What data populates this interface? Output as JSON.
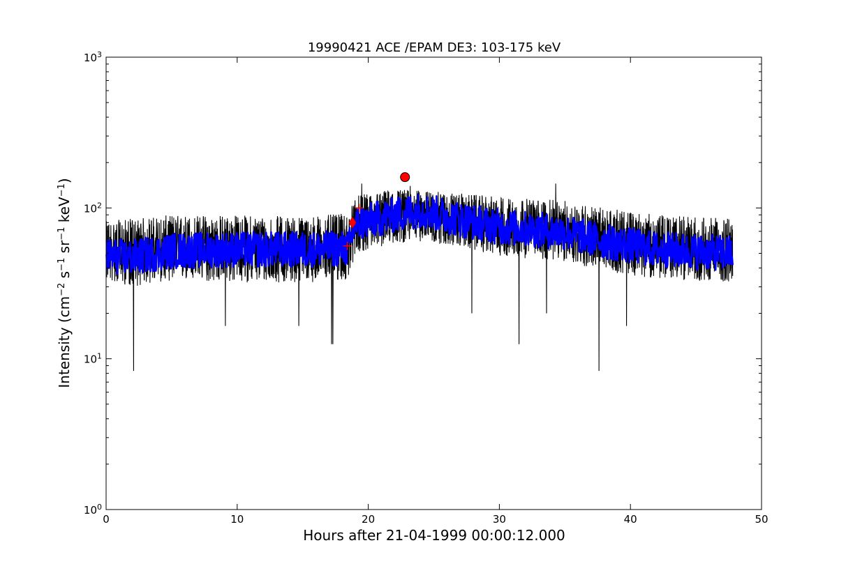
{
  "chart_data": {
    "type": "line",
    "title": "19990421 ACE /EPAM DE3: 103-175 keV",
    "xlabel": "Hours after 21-04-1999 00:00:12.000",
    "ylabel": {
      "prefix": "Intensity (cm",
      "exp1": "−2",
      "s": " s",
      "exp2": "−1",
      "sr": " sr",
      "exp3": "−1",
      "kev": " keV",
      "exp4": "−1",
      "suffix": ")"
    },
    "xlim": [
      0,
      50
    ],
    "ylim": [
      1,
      1000
    ],
    "yscale": "log",
    "grid": false,
    "xticks": [
      {
        "value": 0,
        "label": "0"
      },
      {
        "value": 10,
        "label": "10"
      },
      {
        "value": 20,
        "label": "20"
      },
      {
        "value": 30,
        "label": "30"
      },
      {
        "value": 40,
        "label": "40"
      },
      {
        "value": 50,
        "label": "50"
      }
    ],
    "yticks": [
      {
        "value": 1,
        "base": "10",
        "exp": "0"
      },
      {
        "value": 10,
        "base": "10",
        "exp": "1"
      },
      {
        "value": 100,
        "base": "10",
        "exp": "2"
      },
      {
        "value": 1000,
        "base": "10",
        "exp": "3"
      }
    ],
    "colors": {
      "raw": "#000000",
      "smoothed": "#0000ff",
      "marker": "#ff0000"
    },
    "series": [
      {
        "style": "raw",
        "envelope": [
          {
            "x": 0.0,
            "level": 52,
            "low": 33,
            "high": 82
          },
          {
            "x": 2.0,
            "level": 50,
            "low": 30,
            "high": 85
          },
          {
            "x": 5.0,
            "level": 54,
            "low": 33,
            "high": 90
          },
          {
            "x": 10.0,
            "level": 54,
            "low": 32,
            "high": 90
          },
          {
            "x": 15.0,
            "level": 54,
            "low": 32,
            "high": 88
          },
          {
            "x": 18.5,
            "level": 55,
            "low": 33,
            "high": 92
          },
          {
            "x": 19.0,
            "level": 78,
            "low": 50,
            "high": 120
          },
          {
            "x": 22.0,
            "level": 92,
            "low": 58,
            "high": 135
          },
          {
            "x": 24.0,
            "level": 98,
            "low": 60,
            "high": 130
          },
          {
            "x": 27.0,
            "level": 85,
            "low": 55,
            "high": 125
          },
          {
            "x": 30.0,
            "level": 76,
            "low": 48,
            "high": 118
          },
          {
            "x": 35.0,
            "level": 70,
            "low": 44,
            "high": 112
          },
          {
            "x": 38.0,
            "level": 62,
            "low": 38,
            "high": 100
          },
          {
            "x": 42.0,
            "level": 55,
            "low": 34,
            "high": 90
          },
          {
            "x": 47.8,
            "level": 52,
            "low": 32,
            "high": 85
          }
        ],
        "spikes": [
          {
            "x": 2.1,
            "y": 8.3
          },
          {
            "x": 17.2,
            "y": 12.5
          },
          {
            "x": 17.3,
            "y": 12.5
          },
          {
            "x": 9.1,
            "y": 16.5
          },
          {
            "x": 14.7,
            "y": 16.5
          },
          {
            "x": 31.5,
            "y": 12.5
          },
          {
            "x": 33.6,
            "y": 20.0
          },
          {
            "x": 37.6,
            "y": 8.3
          },
          {
            "x": 39.7,
            "y": 16.5
          },
          {
            "x": 27.9,
            "y": 20.0
          },
          {
            "x": 34.3,
            "y": 145
          },
          {
            "x": 19.5,
            "y": 145
          },
          {
            "x": 23.2,
            "y": 140
          }
        ]
      },
      {
        "style": "smoothed",
        "x": [
          0,
          2,
          5,
          10,
          15,
          18.5,
          19,
          22,
          24,
          27,
          30,
          35,
          38,
          42,
          47.8
        ],
        "y": [
          48,
          47,
          52,
          53,
          53,
          54,
          78,
          90,
          97,
          84,
          75,
          69,
          60,
          53,
          50
        ]
      }
    ],
    "markers": [
      {
        "shape": "circle",
        "x": 22.8,
        "y": 160
      },
      {
        "shape": "diamond",
        "x": 18.8,
        "y": 80
      },
      {
        "shape": "plus",
        "x": 18.4,
        "y": 56
      },
      {
        "shape": "plus",
        "x": 19.3,
        "y": 100
      }
    ]
  }
}
